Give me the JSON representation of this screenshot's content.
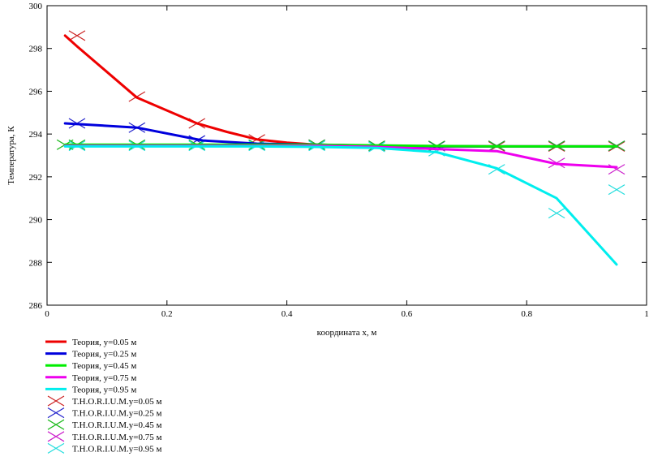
{
  "chart_data": {
    "type": "line",
    "title": "",
    "xlabel": "координата x, м",
    "ylabel": "Температура, К",
    "xlim": [
      0,
      1
    ],
    "ylim": [
      286,
      300
    ],
    "xticks": [
      0,
      0.2,
      0.4,
      0.6,
      0.8,
      1
    ],
    "xtick_labels": [
      "0",
      "0.2",
      "0.4",
      "0.6",
      "0.8",
      "1"
    ],
    "yticks": [
      286,
      288,
      290,
      292,
      294,
      296,
      298,
      300
    ],
    "ytick_labels": [
      "286",
      "288",
      "290",
      "292",
      "294",
      "296",
      "298",
      "300"
    ],
    "grid": false,
    "legend_position": "bottom-left",
    "series": [
      {
        "name": "Теория, y=0.05 м",
        "style": "line",
        "color": "#ee0000",
        "x": [
          0.03,
          0.05,
          0.1,
          0.15,
          0.2,
          0.25,
          0.3,
          0.35,
          0.4,
          0.45,
          0.55,
          0.65,
          0.75,
          0.85,
          0.95
        ],
        "y": [
          298.6,
          298.1,
          296.9,
          295.7,
          295.1,
          294.5,
          294.1,
          293.75,
          293.6,
          293.5,
          293.45,
          293.43,
          293.42,
          293.42,
          293.42
        ]
      },
      {
        "name": "Теория, y=0.25 м",
        "style": "line",
        "color": "#0000dd",
        "x": [
          0.03,
          0.15,
          0.26,
          0.35,
          0.45,
          0.55,
          0.65,
          0.75,
          0.85,
          0.95
        ],
        "y": [
          294.5,
          294.3,
          293.7,
          293.55,
          293.5,
          293.45,
          293.43,
          293.42,
          293.42,
          293.42
        ]
      },
      {
        "name": "Теория, y=0.45 м",
        "style": "line",
        "color": "#00ee00",
        "x": [
          0.03,
          0.15,
          0.25,
          0.35,
          0.45,
          0.55,
          0.65,
          0.75,
          0.85,
          0.95
        ],
        "y": [
          293.5,
          293.5,
          293.5,
          293.5,
          293.5,
          293.47,
          293.44,
          293.42,
          293.42,
          293.42
        ]
      },
      {
        "name": "Теория, y=0.75 м",
        "style": "line",
        "color": "#ee00ee",
        "x": [
          0.03,
          0.15,
          0.25,
          0.35,
          0.45,
          0.55,
          0.65,
          0.75,
          0.85,
          0.95
        ],
        "y": [
          293.45,
          293.45,
          293.45,
          293.45,
          293.45,
          293.4,
          293.3,
          293.2,
          292.6,
          292.45
        ]
      },
      {
        "name": "Теория, y=0.95 м",
        "style": "line",
        "color": "#00eeee",
        "x": [
          0.03,
          0.15,
          0.25,
          0.35,
          0.45,
          0.55,
          0.65,
          0.75,
          0.85,
          0.95
        ],
        "y": [
          293.42,
          293.42,
          293.42,
          293.42,
          293.4,
          293.35,
          293.15,
          292.4,
          291.0,
          287.9
        ]
      },
      {
        "name": "T.H.O.R.I.U.M.y=0.05 м",
        "style": "marker",
        "color": "#cc2222",
        "x": [
          0.05,
          0.15,
          0.25,
          0.35,
          0.45,
          0.55,
          0.65,
          0.75,
          0.85,
          0.95
        ],
        "y": [
          298.6,
          295.75,
          294.5,
          293.75,
          293.5,
          293.45,
          293.43,
          293.42,
          293.42,
          293.42
        ]
      },
      {
        "name": "T.H.O.R.I.U.M.y=0.25 м",
        "style": "marker",
        "color": "#2222cc",
        "x": [
          0.05,
          0.15,
          0.25,
          0.35,
          0.45,
          0.55,
          0.65,
          0.75,
          0.85,
          0.95
        ],
        "y": [
          294.5,
          294.3,
          293.7,
          293.5,
          293.5,
          293.45,
          293.43,
          293.45,
          293.45,
          293.45
        ]
      },
      {
        "name": "T.H.O.R.I.U.M.y=0.45 м",
        "style": "marker",
        "color": "#22bb22",
        "x": [
          0.03,
          0.05,
          0.15,
          0.25,
          0.35,
          0.45,
          0.55,
          0.65,
          0.75,
          0.85,
          0.95
        ],
        "y": [
          293.5,
          293.5,
          293.5,
          293.5,
          293.5,
          293.5,
          293.45,
          293.45,
          293.45,
          293.45,
          293.45
        ]
      },
      {
        "name": "T.H.O.R.I.U.M.y=0.75 м",
        "style": "marker",
        "color": "#cc22cc",
        "x": [
          0.85,
          0.95
        ],
        "y": [
          292.65,
          292.35
        ]
      },
      {
        "name": "T.H.O.R.I.U.M.y=0.95 м",
        "style": "marker",
        "color": "#22dddd",
        "x": [
          0.05,
          0.15,
          0.25,
          0.35,
          0.45,
          0.55,
          0.65,
          0.75,
          0.85,
          0.95
        ],
        "y": [
          293.45,
          293.45,
          293.45,
          293.45,
          293.45,
          293.4,
          293.2,
          292.35,
          290.3,
          291.4
        ]
      }
    ]
  }
}
